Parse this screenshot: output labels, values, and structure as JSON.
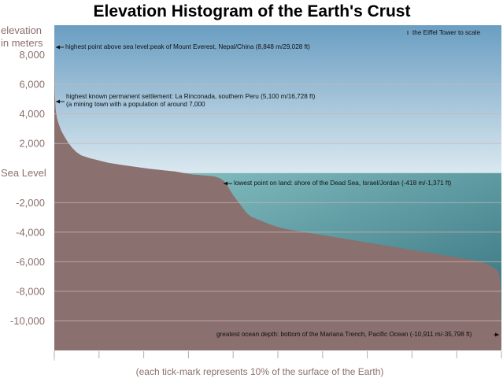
{
  "chart_data": {
    "type": "area",
    "title": "Elevation Histogram of the Earth's Crust",
    "ylabel_lines": [
      "elevation",
      "in meters"
    ],
    "xlabel": "(each tick-mark represents 10% of the surface of the Earth)",
    "ylim": [
      -12000,
      10000
    ],
    "xlim": [
      0,
      100
    ],
    "y_ticks": [
      {
        "value": 8000,
        "label": "8,000"
      },
      {
        "value": 6000,
        "label": "6,000"
      },
      {
        "value": 4000,
        "label": "4,000"
      },
      {
        "value": 2000,
        "label": "2,000"
      },
      {
        "value": 0,
        "label": "Sea Level"
      },
      {
        "value": -2000,
        "label": "-2,000"
      },
      {
        "value": -4000,
        "label": "-4,000"
      },
      {
        "value": -6000,
        "label": "-6,000"
      },
      {
        "value": -8000,
        "label": "-8,000"
      },
      {
        "value": -10000,
        "label": "-10,000"
      }
    ],
    "x_ticks": [
      0,
      10,
      20,
      30,
      40,
      50,
      60,
      70,
      80,
      90,
      100
    ],
    "gridlines_y": [
      6000,
      4000,
      2000,
      -2000,
      -4000,
      -6000,
      -8000,
      -10000
    ],
    "curve": {
      "x": [
        0,
        0.1,
        0.3,
        0.6,
        1,
        1.5,
        2,
        3,
        4,
        5,
        6,
        8,
        10,
        12,
        15,
        18,
        21,
        24,
        27,
        29,
        31,
        33,
        35,
        36,
        37,
        38,
        38.5,
        39,
        39.5,
        40,
        41,
        42,
        43,
        44,
        46,
        48,
        50,
        52,
        55,
        58,
        61,
        64,
        67,
        70,
        73,
        76,
        79,
        82,
        85,
        88,
        91,
        94,
        96,
        97,
        98,
        99,
        99.5,
        99.8,
        100
      ],
      "y": [
        8848,
        5500,
        4300,
        3700,
        3300,
        2900,
        2600,
        2100,
        1700,
        1400,
        1200,
        1000,
        850,
        700,
        550,
        420,
        300,
        200,
        100,
        0,
        -100,
        -150,
        -200,
        -250,
        -350,
        -550,
        -750,
        -1000,
        -1250,
        -1500,
        -1900,
        -2300,
        -2700,
        -2950,
        -3200,
        -3450,
        -3650,
        -3800,
        -3950,
        -4100,
        -4250,
        -4400,
        -4550,
        -4700,
        -4850,
        -5000,
        -5150,
        -5300,
        -5450,
        -5600,
        -5750,
        -5900,
        -6050,
        -6200,
        -6350,
        -6550,
        -6800,
        -7500,
        -10911
      ]
    },
    "colors": {
      "crust": "#8a706e",
      "sky_top": "#6a9ec2",
      "sky_bottom": "#dbe8f0",
      "sea_top": "#8fcaca",
      "sea_bottom": "#2c6a78",
      "gridline": "#c9b8b6",
      "text_axis": "#8a6f6c"
    },
    "annotations": [
      {
        "id": "everest",
        "lines": [
          "highest point above sea level:peak of Mount Everest, Nepal/China (8,848 m/29,028 ft)"
        ],
        "x": 0,
        "y": 8848,
        "side": "right"
      },
      {
        "id": "rinconada",
        "lines": [
          "highest known permanent settlement: La Rinconada, southern Peru (5,100 m/16,728 ft)",
          "(a mining town with a population of around 7,000"
        ],
        "x": 0.2,
        "y": 5100,
        "side": "right"
      },
      {
        "id": "dead-sea",
        "lines": [
          "lowest point on land: shore of the Dead Sea, Israel/Jordan (-418 m/-1,371 ft)"
        ],
        "x": 38.5,
        "y": -418,
        "side": "right"
      },
      {
        "id": "mariana",
        "lines": [
          "greatest ocean depth: bottom of the Mariana Trench, Pacific Ocean (-10,911 m/-35,798 ft)"
        ],
        "x": 100,
        "y": -10911,
        "side": "left"
      },
      {
        "id": "eiffel",
        "lines": [
          "the Eiffel Tower to scale"
        ],
        "x": 79,
        "y": 9500,
        "side": "right"
      }
    ],
    "grid": true
  }
}
